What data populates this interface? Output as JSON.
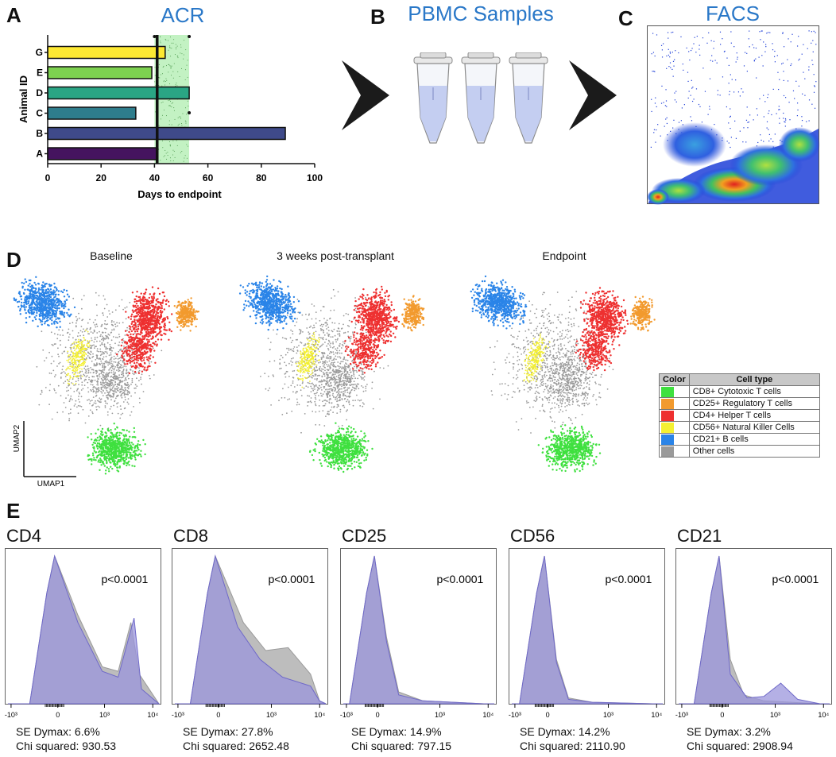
{
  "panels": {
    "A": {
      "letter": "A",
      "title": "ACR"
    },
    "B": {
      "letter": "B",
      "title": "PBMC Samples"
    },
    "C": {
      "letter": "C",
      "title": "FACS"
    },
    "D": {
      "letter": "D"
    },
    "E": {
      "letter": "E"
    }
  },
  "chart_data": [
    {
      "type": "bar",
      "orientation": "horizontal",
      "title": "ACR",
      "xlabel": "Days to endpoint",
      "ylabel": "Animal ID",
      "categories": [
        "G",
        "E",
        "D",
        "C",
        "B",
        "A"
      ],
      "values": [
        44,
        39,
        53,
        33,
        89,
        41
      ],
      "bar_colors": [
        "#fde933",
        "#7dd150",
        "#2aa584",
        "#2e7d8c",
        "#3f4a8a",
        "#45145f"
      ],
      "xlim": [
        0,
        100
      ],
      "xticks": [
        "0",
        "20",
        "40",
        "60",
        "80",
        "100"
      ],
      "reference_line": 41,
      "shaded_range": [
        40,
        53
      ]
    },
    {
      "type": "histogram-overlay",
      "panels": [
        {
          "marker": "CD4",
          "p_value": "p<0.0001",
          "se_dymax": "SE Dymax: 6.6%",
          "chi_squared": "Chi squared: 930.53"
        },
        {
          "marker": "CD8",
          "p_value": "p<0.0001",
          "se_dymax": "SE Dymax: 27.8%",
          "chi_squared": "Chi squared: 2652.48"
        },
        {
          "marker": "CD25",
          "p_value": "p<0.0001",
          "se_dymax": "SE Dymax: 14.9%",
          "chi_squared": "Chi squared: 797.15"
        },
        {
          "marker": "CD56",
          "p_value": "p<0.0001",
          "se_dymax": "SE Dymax: 14.2%",
          "chi_squared": "Chi squared: 2110.90"
        },
        {
          "marker": "CD21",
          "p_value": "p<0.0001",
          "se_dymax": "SE Dymax: 3.2%",
          "chi_squared": "Chi squared: 2908.94"
        }
      ],
      "tick_labels": [
        "-10³",
        "0",
        "10³",
        "10⁴"
      ]
    }
  ],
  "umap": {
    "titles": [
      "Baseline",
      "3 weeks post-transplant",
      "Endpoint"
    ],
    "axis_x": "UMAP1",
    "axis_y": "UMAP2"
  },
  "legend": {
    "header_color": "Color",
    "header_type": "Cell type",
    "rows": [
      {
        "label": "CD8+ Cytotoxic T cells",
        "color": "#3fe03f"
      },
      {
        "label": "CD25+ Regulatory T cells",
        "color": "#f29a2e"
      },
      {
        "label": "CD4+ Helper T cells",
        "color": "#ee3030"
      },
      {
        "label": "CD56+ Natural Killer Cells",
        "color": "#f4f032"
      },
      {
        "label": "CD21+ B cells",
        "color": "#2a84e8"
      },
      {
        "label": "Other cells",
        "color": "#9a9a9a"
      }
    ]
  },
  "colors": {
    "title_blue": "#2a78c8",
    "shade_green": "#b8f0b8",
    "hist_gray": "#bdbdbd",
    "hist_purple": "#9b96dc"
  }
}
